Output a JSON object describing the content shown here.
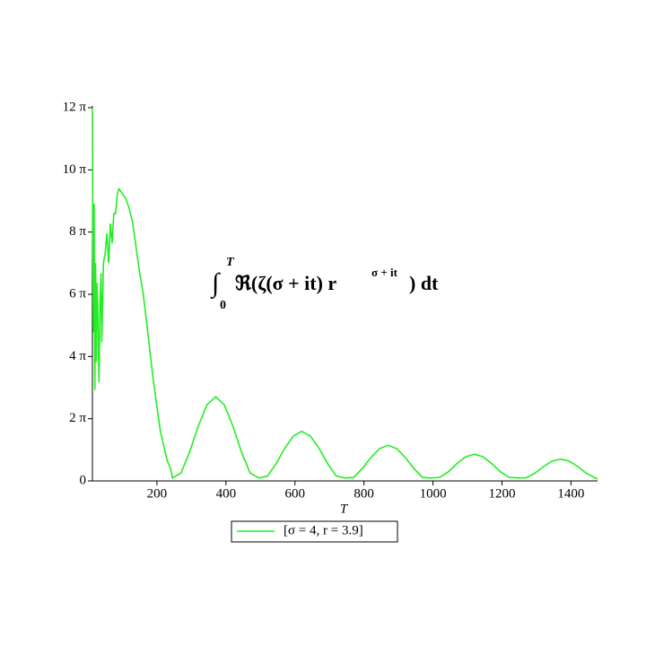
{
  "chart_data": {
    "type": "line",
    "annotation": {
      "integral": "∫",
      "upper": "T",
      "lower": "0",
      "body": "ℜ(ζ(σ + it) r",
      "exponent": "σ + it",
      "tail": ") dt"
    },
    "xlabel": "T",
    "xlim": [
      13,
      1477
    ],
    "xticks": [
      200,
      400,
      600,
      800,
      1000,
      1200,
      1400
    ],
    "ylim": [
      0,
      37.699
    ],
    "yticks": [
      0,
      {
        "value": 6.283,
        "label": "2 π"
      },
      {
        "value": 12.566,
        "label": "4 π"
      },
      {
        "value": 18.85,
        "label": "6 π"
      },
      {
        "value": 25.133,
        "label": "8 π"
      },
      {
        "value": 31.416,
        "label": "10 π"
      },
      {
        "value": 37.699,
        "label": "12 π"
      }
    ],
    "x": [
      13,
      14,
      16,
      18,
      20,
      22,
      24,
      26,
      28,
      30,
      32,
      35,
      38,
      40,
      45,
      50,
      55,
      60,
      65,
      70,
      75,
      80,
      85,
      90,
      100,
      110,
      120,
      130,
      140,
      150,
      160,
      170,
      180,
      190,
      200,
      210,
      220,
      230,
      240,
      245,
      270,
      295,
      320,
      345,
      370,
      395,
      420,
      445,
      470,
      495,
      520,
      545,
      570,
      595,
      620,
      645,
      670,
      695,
      720,
      745,
      770,
      795,
      820,
      845,
      870,
      895,
      920,
      945,
      970,
      995,
      1020,
      1045,
      1070,
      1095,
      1120,
      1145,
      1170,
      1195,
      1220,
      1245,
      1270,
      1295,
      1320,
      1345,
      1370,
      1395,
      1420,
      1445,
      1470,
      1477
    ],
    "series": [
      {
        "name": "[σ = 4, r = 3.9]",
        "color": "#22ee22",
        "values": [
          37.7,
          25,
          15,
          28,
          9.2,
          22,
          12,
          20,
          18,
          14,
          10,
          18,
          21,
          14,
          22,
          23,
          25,
          22,
          26,
          24,
          27,
          27,
          29,
          29.5,
          29,
          28.5,
          27.5,
          26,
          23.5,
          21,
          19,
          16,
          13,
          10,
          7.5,
          5,
          3.5,
          2,
          1.2,
          0.3,
          0.81,
          2.94,
          5.56,
          7.69,
          8.5,
          7.69,
          5.56,
          2.94,
          0.81,
          0.3,
          0.48,
          1.73,
          3.27,
          4.52,
          5.0,
          4.52,
          3.27,
          1.73,
          0.48,
          0.3,
          0.34,
          1.24,
          2.36,
          3.26,
          3.6,
          3.26,
          2.36,
          1.24,
          0.34,
          0.3,
          0.36,
          0.93,
          1.77,
          2.44,
          2.7,
          2.44,
          1.77,
          0.93,
          0.36,
          0.3,
          0.31,
          0.76,
          1.44,
          1.99,
          2.2,
          1.99,
          1.44,
          0.76,
          0.31,
          0.2
        ]
      }
    ]
  }
}
